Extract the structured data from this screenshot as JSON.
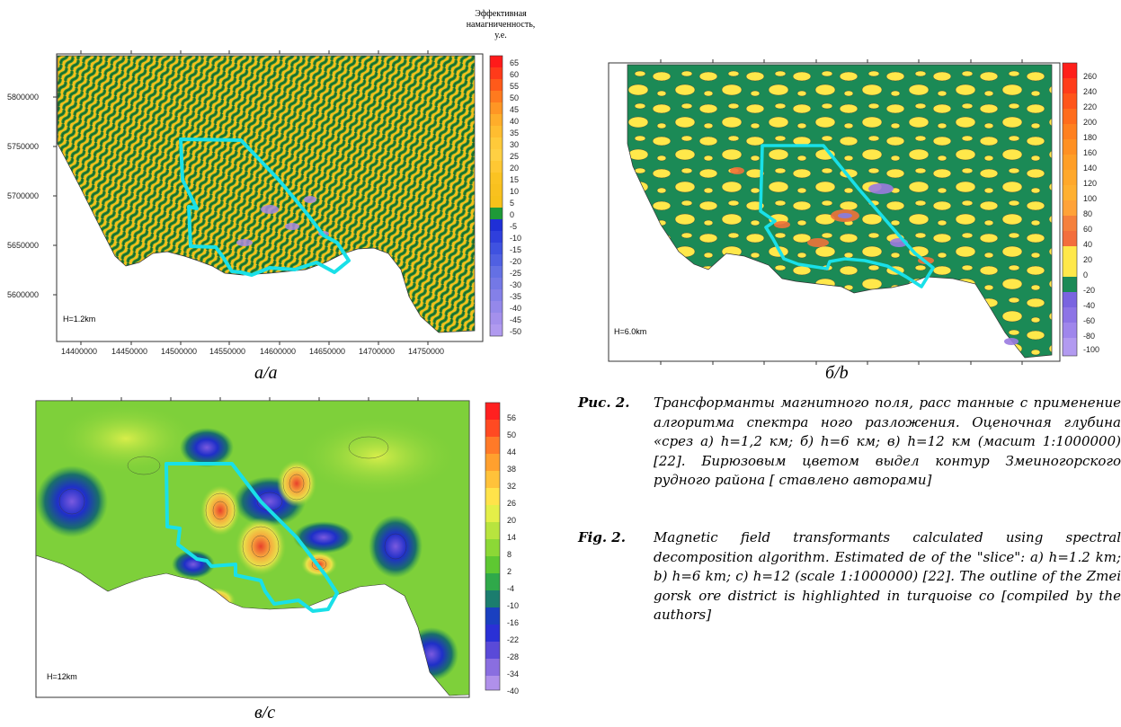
{
  "panel_a": {
    "colorbar_title": [
      "Эффективная",
      "намагниченность,",
      "у.е."
    ],
    "colorbar_labels": [
      "65",
      "60",
      "55",
      "50",
      "45",
      "40",
      "35",
      "30",
      "25",
      "20",
      "15",
      "10",
      "5",
      "0",
      "-5",
      "-10",
      "-15",
      "-20",
      "-25",
      "-30",
      "-35",
      "-40",
      "-45",
      "-50"
    ],
    "yticks": [
      "5800000",
      "5750000",
      "5700000",
      "5650000",
      "5600000"
    ],
    "xticks": [
      "14400000",
      "14450000",
      "14500000",
      "14550000",
      "14600000",
      "14650000",
      "14700000",
      "14750000"
    ],
    "depth_label": "H=1.2km",
    "caption": "а/a"
  },
  "panel_b": {
    "colorbar_labels": [
      "260",
      "240",
      "220",
      "200",
      "180",
      "160",
      "140",
      "120",
      "100",
      "80",
      "60",
      "40",
      "20",
      "0",
      "-20",
      "-40",
      "-60",
      "-80",
      "-100"
    ],
    "depth_label": "H=6.0km",
    "caption": "б/b"
  },
  "panel_c": {
    "colorbar_labels": [
      "56",
      "50",
      "44",
      "38",
      "32",
      "26",
      "20",
      "14",
      "8",
      "2",
      "-4",
      "-10",
      "-16",
      "-22",
      "-28",
      "-34",
      "-40"
    ],
    "depth_label": "H=12km",
    "caption": "в/c"
  },
  "caption_ru": {
    "label": "Рис. 2.",
    "text": "Трансформанты магнитного поля, расс танные с применение алгоритма спектра ного разложения. Оценочная глубина «срез а) h=1,2 км; б) h=6 км; в) h=12 км (масшт 1:1000000) [22]. Бирюзовым цветом выдел контур Змеиногорского рудного района [ ставлено авторами]"
  },
  "caption_en": {
    "label": "Fig. 2.",
    "text": "Magnetic field transformants calculated using spectral decomposition algorithm. Estimated de of the \"slice\": a) h=1.2 km; b) h=6 km; c) h=12 (scale 1:1000000) [22]. The outline of the Zmei gorsk ore district is highlighted in turquoise co [compiled by the authors]"
  },
  "colors": {
    "contour": "#19e0e8",
    "green_a": "#1f8f3a",
    "yellow_a": "#f7c21a",
    "green_b": "#1b8a56",
    "yellow_b": "#ffe84a"
  }
}
